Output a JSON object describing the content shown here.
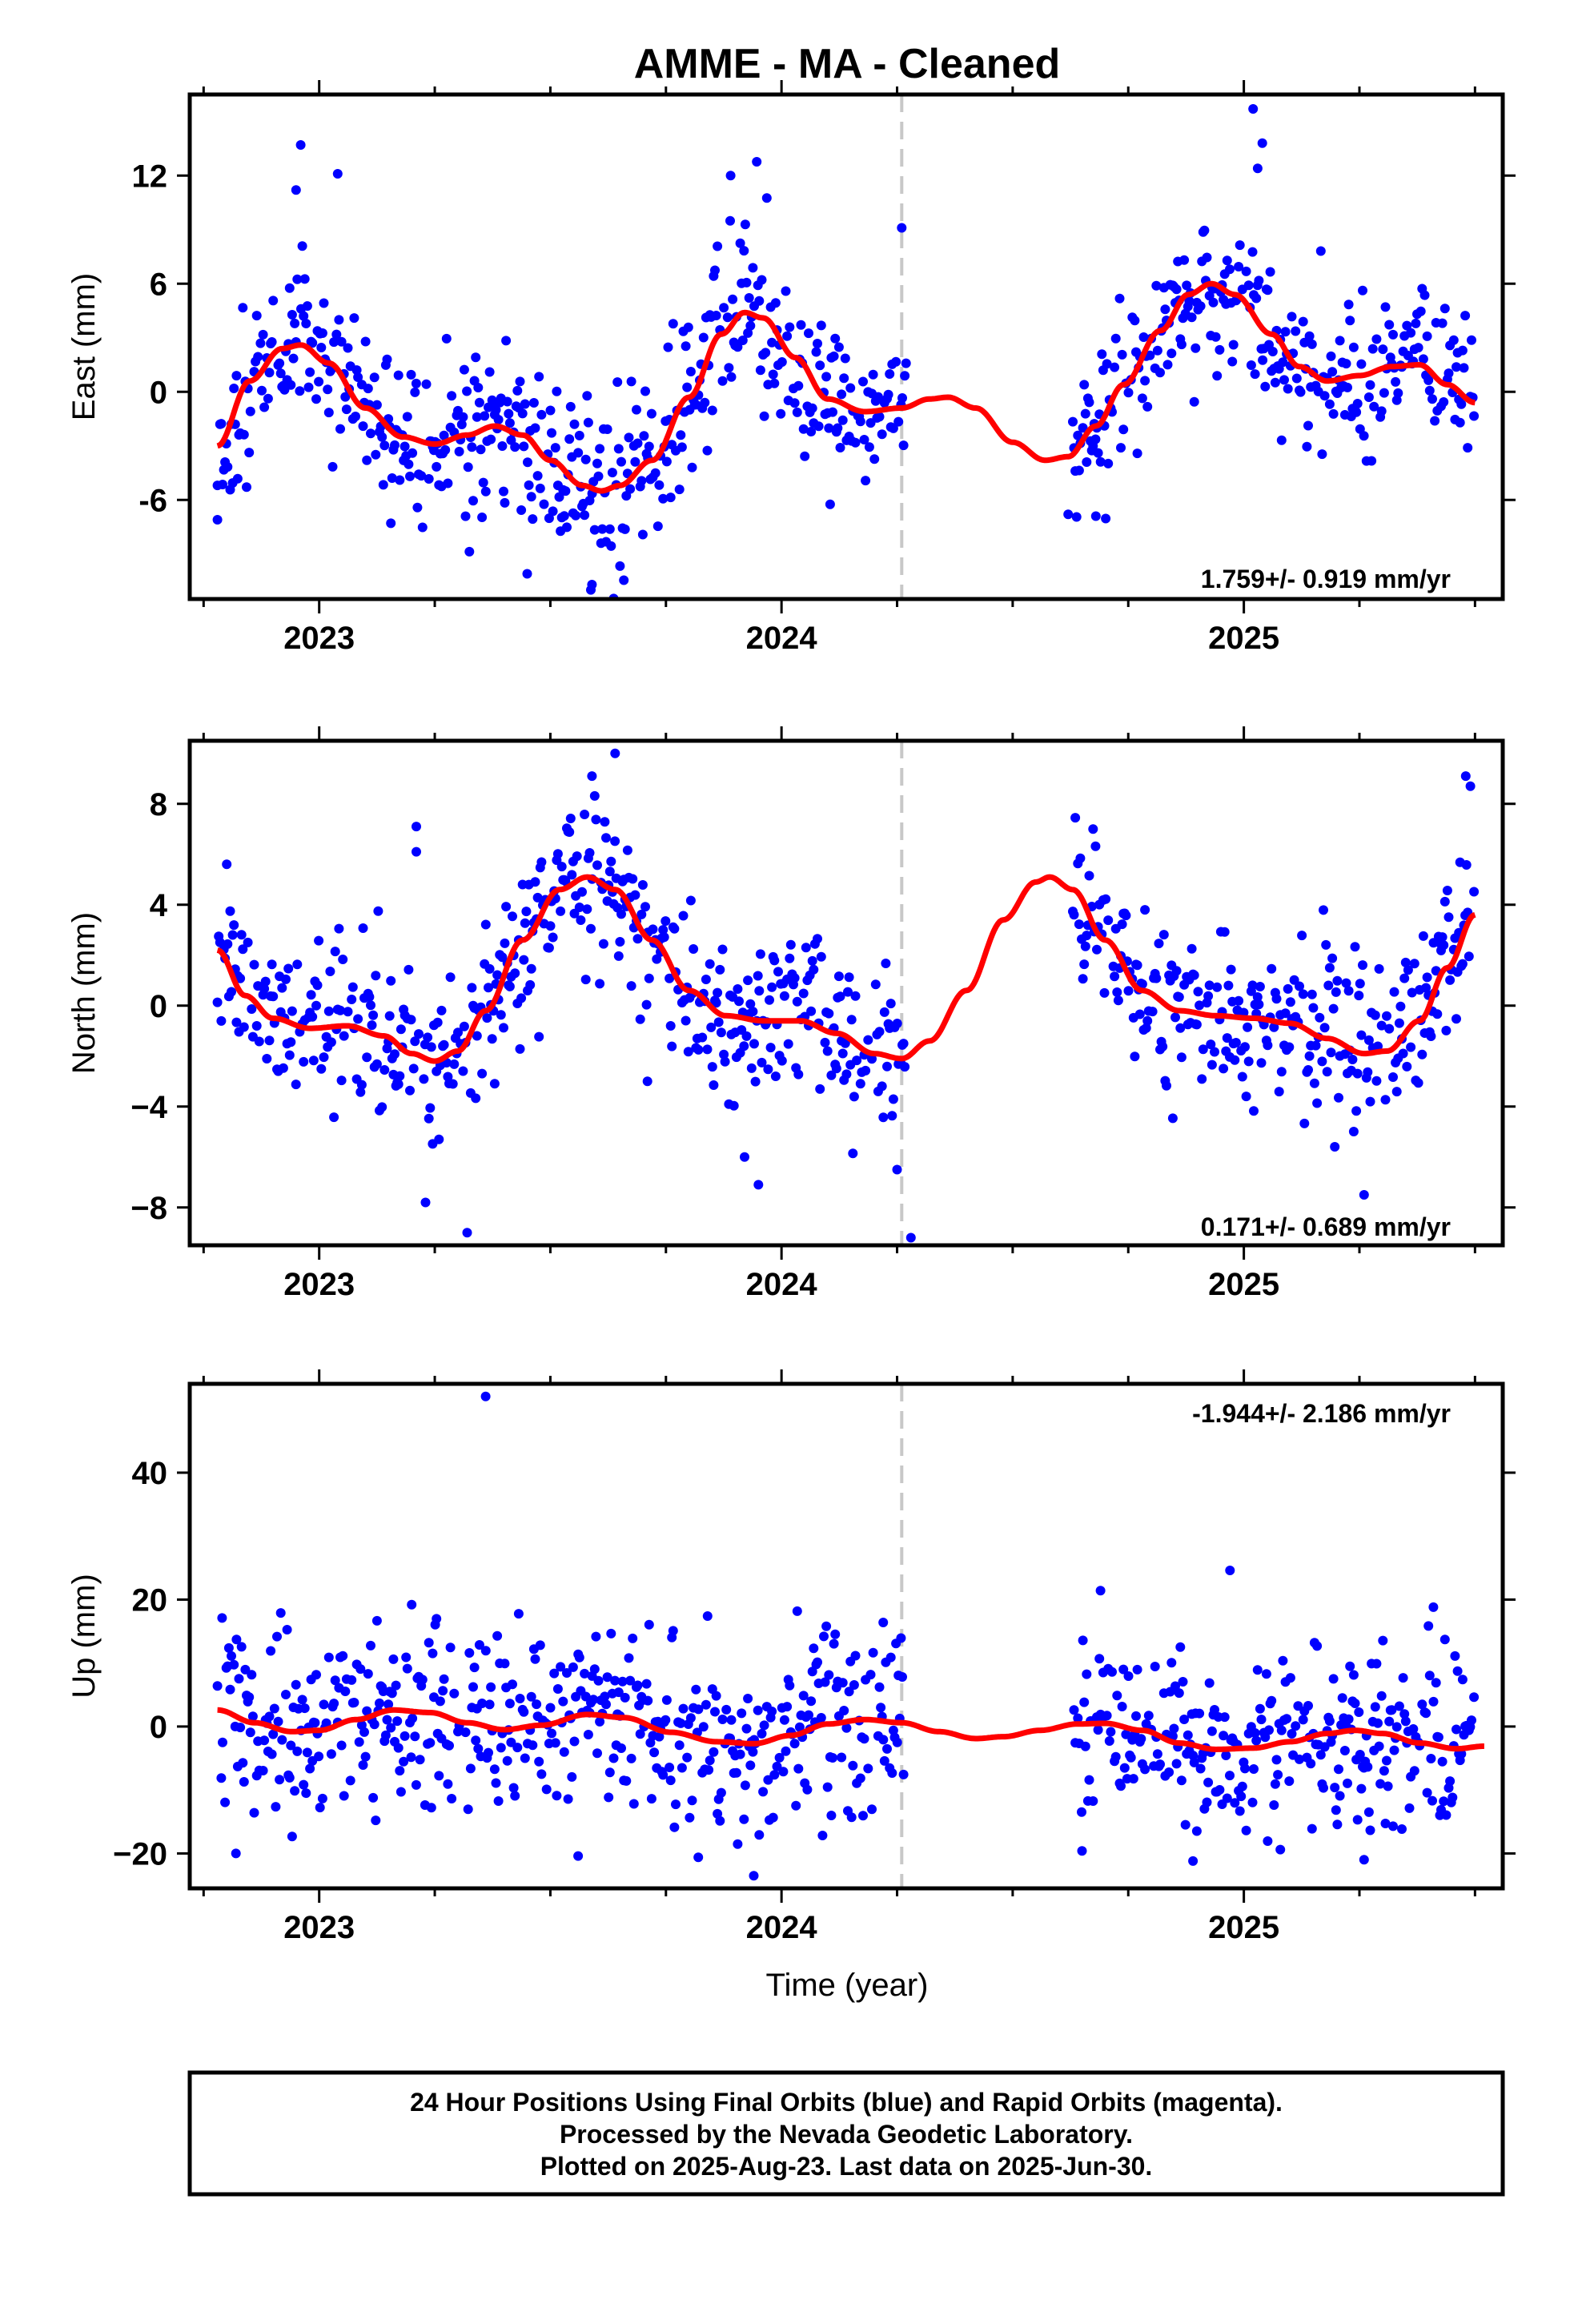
{
  "title": "AMME  - MA - Cleaned",
  "xlabel": "Time (year)",
  "footer": [
    "24 Hour Positions Using Final Orbits (blue) and Rapid Orbits (magenta).",
    "Processed by the Nevada Geodetic Laboratory.",
    "Plotted on 2025-Aug-23. Last data on 2025-Jun-30."
  ],
  "colors": {
    "data": "#0000ff",
    "fit": "#ff0000",
    "break_line": "#c8c8c8",
    "frame": "#000000"
  },
  "chart_data": [
    {
      "type": "scatter",
      "ylabel": "East (mm)",
      "rate": "1.759+/- 0.919 mm/yr",
      "xlim": [
        2022.72,
        2025.56
      ],
      "ylim": [
        -11.5,
        16.5
      ],
      "yticks": [
        "12",
        "6",
        "0",
        "-6"
      ],
      "ytick_values": [
        12,
        6,
        0,
        -6
      ],
      "xticks": [
        "2023",
        "2024",
        "2025"
      ],
      "xtick_values": [
        2023,
        2024,
        2025
      ],
      "break_x": 2024.26,
      "grid": false,
      "seed": 11,
      "fit": [
        [
          2022.78,
          -3.0
        ],
        [
          2022.85,
          0.6
        ],
        [
          2022.92,
          2.4
        ],
        [
          2022.96,
          2.6
        ],
        [
          2023.02,
          1.6
        ],
        [
          2023.1,
          -0.9
        ],
        [
          2023.18,
          -2.5
        ],
        [
          2023.25,
          -2.9
        ],
        [
          2023.32,
          -2.4
        ],
        [
          2023.38,
          -1.9
        ],
        [
          2023.44,
          -2.4
        ],
        [
          2023.5,
          -3.8
        ],
        [
          2023.57,
          -5.2
        ],
        [
          2023.61,
          -5.5
        ],
        [
          2023.65,
          -5.2
        ],
        [
          2023.72,
          -3.8
        ],
        [
          2023.8,
          -0.3
        ],
        [
          2023.87,
          3.2
        ],
        [
          2023.92,
          4.4
        ],
        [
          2023.96,
          4.1
        ],
        [
          2024.03,
          1.9
        ],
        [
          2024.1,
          -0.4
        ],
        [
          2024.18,
          -1.1
        ],
        [
          2024.26,
          -0.9
        ],
        [
          2024.32,
          -0.4
        ],
        [
          2024.36,
          -0.3
        ],
        [
          2024.42,
          -0.9
        ],
        [
          2024.5,
          -2.8
        ],
        [
          2024.57,
          -3.8
        ],
        [
          2024.62,
          -3.6
        ],
        [
          2024.68,
          -1.9
        ],
        [
          2024.74,
          0.4
        ],
        [
          2024.82,
          3.4
        ],
        [
          2024.88,
          5.4
        ],
        [
          2024.93,
          6.0
        ],
        [
          2024.98,
          5.4
        ],
        [
          2025.06,
          3.2
        ],
        [
          2025.12,
          1.4
        ],
        [
          2025.18,
          0.6
        ],
        [
          2025.25,
          0.9
        ],
        [
          2025.32,
          1.4
        ],
        [
          2025.38,
          1.5
        ],
        [
          2025.44,
          0.4
        ],
        [
          2025.5,
          -0.6
        ]
      ],
      "noise": 2.3,
      "outliers": [
        [
          2022.96,
          13.7
        ],
        [
          2022.95,
          11.2
        ],
        [
          2023.04,
          12.1
        ],
        [
          2023.89,
          12.0
        ],
        [
          2024.26,
          9.1
        ],
        [
          2025.02,
          15.7
        ],
        [
          2025.04,
          13.8
        ],
        [
          2025.03,
          12.4
        ],
        [
          2023.45,
          -10.1
        ],
        [
          2023.59,
          -10.7
        ],
        [
          2022.78,
          -7.1
        ],
        [
          2024.68,
          -6.9
        ],
        [
          2024.62,
          -6.8
        ]
      ]
    },
    {
      "type": "scatter",
      "ylabel": "North (mm)",
      "rate": "0.171+/- 0.689 mm/yr",
      "xlim": [
        2022.72,
        2025.56
      ],
      "ylim": [
        -9.5,
        10.5
      ],
      "yticks": [
        "8",
        "4",
        "0",
        "−4",
        "−8"
      ],
      "ytick_values": [
        8,
        4,
        0,
        -4,
        -8
      ],
      "xticks": [
        "2023",
        "2024",
        "2025"
      ],
      "xtick_values": [
        2023,
        2024,
        2025
      ],
      "break_x": 2024.26,
      "grid": false,
      "seed": 23,
      "fit": [
        [
          2022.78,
          2.2
        ],
        [
          2022.84,
          0.4
        ],
        [
          2022.9,
          -0.5
        ],
        [
          2022.98,
          -0.9
        ],
        [
          2023.06,
          -0.8
        ],
        [
          2023.14,
          -1.2
        ],
        [
          2023.2,
          -1.9
        ],
        [
          2023.25,
          -2.2
        ],
        [
          2023.3,
          -1.8
        ],
        [
          2023.36,
          -0.2
        ],
        [
          2023.44,
          2.6
        ],
        [
          2023.52,
          4.6
        ],
        [
          2023.58,
          5.1
        ],
        [
          2023.64,
          4.6
        ],
        [
          2023.72,
          2.6
        ],
        [
          2023.8,
          0.6
        ],
        [
          2023.88,
          -0.4
        ],
        [
          2023.96,
          -0.6
        ],
        [
          2024.04,
          -0.6
        ],
        [
          2024.12,
          -1.1
        ],
        [
          2024.2,
          -1.9
        ],
        [
          2024.26,
          -2.1
        ],
        [
          2024.32,
          -1.4
        ],
        [
          2024.4,
          0.6
        ],
        [
          2024.48,
          3.4
        ],
        [
          2024.55,
          4.9
        ],
        [
          2024.58,
          5.1
        ],
        [
          2024.63,
          4.6
        ],
        [
          2024.7,
          2.6
        ],
        [
          2024.78,
          0.6
        ],
        [
          2024.86,
          -0.2
        ],
        [
          2024.94,
          -0.4
        ],
        [
          2025.02,
          -0.5
        ],
        [
          2025.1,
          -0.7
        ],
        [
          2025.18,
          -1.3
        ],
        [
          2025.26,
          -1.9
        ],
        [
          2025.31,
          -1.8
        ],
        [
          2025.38,
          -0.6
        ],
        [
          2025.44,
          1.5
        ],
        [
          2025.5,
          3.6
        ]
      ],
      "noise": 1.6,
      "outliers": [
        [
          2023.64,
          10.0
        ],
        [
          2023.59,
          9.1
        ],
        [
          2023.21,
          7.1
        ],
        [
          2023.21,
          6.1
        ],
        [
          2025.48,
          9.1
        ],
        [
          2025.49,
          8.7
        ],
        [
          2022.8,
          5.6
        ],
        [
          2023.32,
          -9.0
        ],
        [
          2024.28,
          -9.2
        ],
        [
          2024.25,
          -6.5
        ],
        [
          2023.23,
          -7.8
        ],
        [
          2025.26,
          -7.5
        ],
        [
          2023.95,
          -7.1
        ],
        [
          2023.92,
          -6.0
        ],
        [
          2023.71,
          -3.0
        ]
      ]
    },
    {
      "type": "scatter",
      "ylabel": "Up (mm)",
      "rate": "-1.944+/- 2.186 mm/yr",
      "xlim": [
        2022.72,
        2025.56
      ],
      "ylim": [
        -25.5,
        54.0
      ],
      "yticks": [
        "40",
        "20",
        "0",
        "−20"
      ],
      "ytick_values": [
        40,
        20,
        0,
        -20
      ],
      "xticks": [
        "2023",
        "2024",
        "2025"
      ],
      "xtick_values": [
        2023,
        2024,
        2025
      ],
      "break_x": 2024.26,
      "grid": false,
      "seed": 37,
      "fit": [
        [
          2022.78,
          2.6
        ],
        [
          2022.86,
          0.6
        ],
        [
          2022.94,
          -0.8
        ],
        [
          2023.0,
          -0.6
        ],
        [
          2023.08,
          1.1
        ],
        [
          2023.16,
          2.6
        ],
        [
          2023.24,
          2.2
        ],
        [
          2023.32,
          0.6
        ],
        [
          2023.4,
          -0.5
        ],
        [
          2023.48,
          0.2
        ],
        [
          2023.58,
          1.9
        ],
        [
          2023.66,
          1.4
        ],
        [
          2023.76,
          -0.9
        ],
        [
          2023.86,
          -2.4
        ],
        [
          2023.94,
          -2.7
        ],
        [
          2024.02,
          -1.4
        ],
        [
          2024.1,
          0.4
        ],
        [
          2024.18,
          1.1
        ],
        [
          2024.26,
          0.6
        ],
        [
          2024.34,
          -0.8
        ],
        [
          2024.42,
          -1.9
        ],
        [
          2024.48,
          -1.6
        ],
        [
          2024.56,
          -0.6
        ],
        [
          2024.64,
          0.4
        ],
        [
          2024.7,
          0.5
        ],
        [
          2024.78,
          -0.6
        ],
        [
          2024.86,
          -2.6
        ],
        [
          2024.94,
          -3.6
        ],
        [
          2025.02,
          -3.4
        ],
        [
          2025.1,
          -2.4
        ],
        [
          2025.18,
          -1.1
        ],
        [
          2025.24,
          -0.6
        ],
        [
          2025.3,
          -1.1
        ],
        [
          2025.38,
          -2.6
        ],
        [
          2025.46,
          -3.5
        ],
        [
          2025.52,
          -3.1
        ]
      ],
      "noise": 7.0,
      "outliers": [
        [
          2023.36,
          52.0
        ],
        [
          2024.97,
          24.6
        ],
        [
          2024.69,
          21.4
        ],
        [
          2025.41,
          18.8
        ],
        [
          2023.2,
          19.2
        ],
        [
          2023.84,
          17.4
        ],
        [
          2022.79,
          17.1
        ],
        [
          2024.22,
          16.4
        ],
        [
          2024.65,
          -19.6
        ],
        [
          2024.89,
          -21.2
        ],
        [
          2023.94,
          -23.5
        ],
        [
          2025.26,
          -21.0
        ],
        [
          2023.82,
          -20.6
        ],
        [
          2023.56,
          -20.4
        ],
        [
          2022.82,
          -20.0
        ]
      ]
    }
  ]
}
